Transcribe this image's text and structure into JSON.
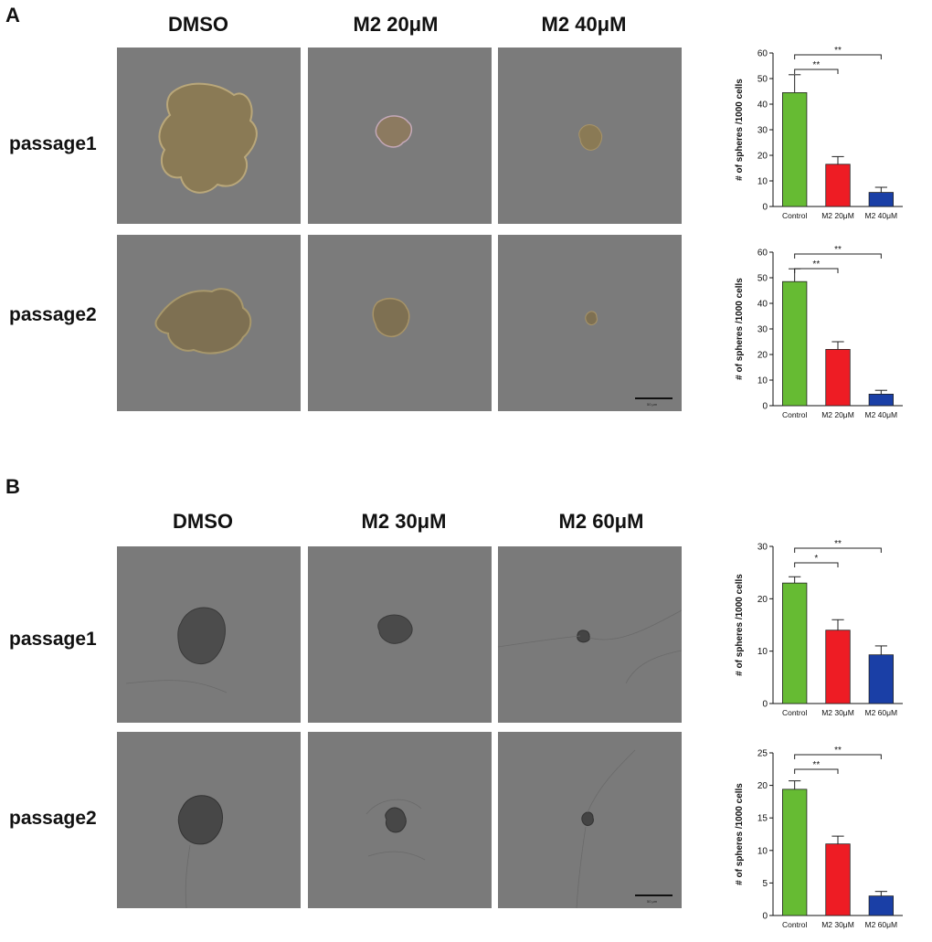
{
  "panels": [
    {
      "letter": "A",
      "columns": [
        "DMSO",
        "M2 20μM",
        "M2 40μM"
      ],
      "rows": [
        "passage1",
        "passage2"
      ],
      "cell_type": "color",
      "scale_bar_label": "50 μm"
    },
    {
      "letter": "B",
      "columns": [
        "DMSO",
        "M2 30μM",
        "M2 60μM"
      ],
      "rows": [
        "passage1",
        "passage2"
      ],
      "cell_type": "grayscale",
      "scale_bar_label": "50 μm"
    }
  ],
  "colors": {
    "control": "#66bb33",
    "low": "#ee1c24",
    "high": "#1a3fa6",
    "photo_color_bg": "#7b7b7b",
    "photo_gray_bg": "#7a7a7a"
  },
  "chart_data": [
    {
      "type": "bar",
      "panel": "A",
      "row": "passage1",
      "categories": [
        "Control",
        "M2 20μM",
        "M2 40μM"
      ],
      "values": [
        44.5,
        16.5,
        5.5
      ],
      "errors": [
        7,
        3,
        2
      ],
      "ylabel": "# of spheres /1000 cells",
      "ylim": [
        0,
        60
      ],
      "yticks": [
        0,
        10,
        20,
        30,
        40,
        50,
        60
      ],
      "significance": [
        {
          "from": 0,
          "to": 1,
          "label": "**"
        },
        {
          "from": 0,
          "to": 2,
          "label": "**"
        }
      ]
    },
    {
      "type": "bar",
      "panel": "A",
      "row": "passage2",
      "categories": [
        "Control",
        "M2 20μM",
        "M2 40μM"
      ],
      "values": [
        48.5,
        22,
        4.5
      ],
      "errors": [
        5,
        3,
        1.5
      ],
      "ylabel": "# of spheres /1000 cells",
      "ylim": [
        0,
        60
      ],
      "yticks": [
        0,
        10,
        20,
        30,
        40,
        50,
        60
      ],
      "significance": [
        {
          "from": 0,
          "to": 1,
          "label": "**"
        },
        {
          "from": 0,
          "to": 2,
          "label": "**"
        }
      ]
    },
    {
      "type": "bar",
      "panel": "B",
      "row": "passage1",
      "categories": [
        "Control",
        "M2 30μM",
        "M2 60μM"
      ],
      "values": [
        23,
        14,
        9.3
      ],
      "errors": [
        1.2,
        2,
        1.7
      ],
      "ylabel": "# of spheres /1000 cells",
      "ylim": [
        0,
        30
      ],
      "yticks": [
        0,
        10,
        20,
        30
      ],
      "significance": [
        {
          "from": 0,
          "to": 1,
          "label": "*"
        },
        {
          "from": 0,
          "to": 2,
          "label": "**"
        }
      ]
    },
    {
      "type": "bar",
      "panel": "B",
      "row": "passage2",
      "categories": [
        "Control",
        "M2 30μM",
        "M2 60μM"
      ],
      "values": [
        19.4,
        11,
        3
      ],
      "errors": [
        1.3,
        1.2,
        0.7
      ],
      "ylabel": "# of spheres /1000 cells",
      "ylim": [
        0,
        25
      ],
      "yticks": [
        0,
        5,
        10,
        15,
        20,
        25
      ],
      "significance": [
        {
          "from": 0,
          "to": 1,
          "label": "**"
        },
        {
          "from": 0,
          "to": 2,
          "label": "**"
        }
      ]
    }
  ]
}
